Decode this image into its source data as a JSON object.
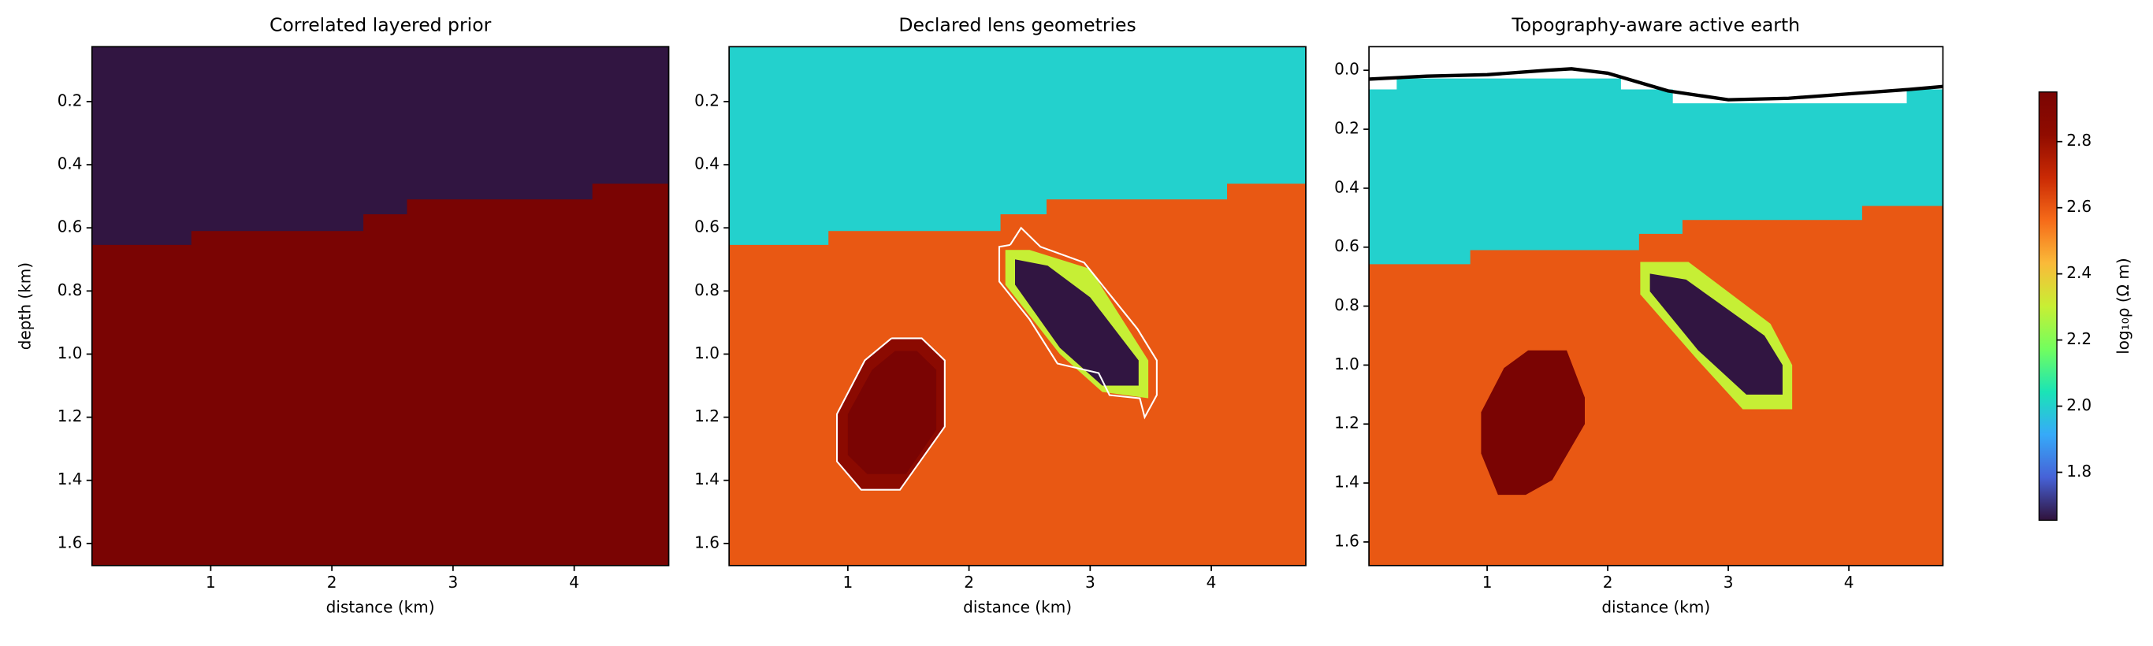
{
  "chart_data": [
    {
      "type": "heatmap",
      "title": "Correlated layered prior",
      "xlabel": "distance (km)",
      "ylabel": "depth (km)",
      "xlim": [
        0.02,
        4.78
      ],
      "ylim": [
        1.67,
        0.026
      ],
      "xticks": [
        1,
        2,
        3,
        4
      ],
      "yticks": [
        0.2,
        0.4,
        0.6,
        0.8,
        {
          "value": 1,
          "label": "1.0"
        },
        1.2,
        1.4,
        1.6
      ],
      "regions": [
        {
          "value": 1.66,
          "x": [
            0,
            4.8,
            4.8,
            0
          ],
          "y": [
            0,
            0,
            1.7,
            1.7
          ]
        },
        {
          "value": 2.95,
          "x": [
            0,
            0.84,
            0.84,
            2.26,
            2.26,
            2.62,
            2.62,
            4.15,
            4.15,
            4.8,
            4.8,
            0
          ],
          "y": [
            0.654,
            0.654,
            0.61,
            0.61,
            0.557,
            0.557,
            0.51,
            0.51,
            0.46,
            0.46,
            1.7,
            1.7
          ]
        }
      ]
    },
    {
      "type": "heatmap",
      "title": "Declared lens geometries",
      "xlabel": "distance (km)",
      "xlim": [
        0.02,
        4.78
      ],
      "ylim": [
        1.67,
        0.026
      ],
      "xticks": [
        1,
        2,
        3,
        4
      ],
      "yticks": [
        0.2,
        0.4,
        0.6,
        0.8,
        {
          "value": 1,
          "label": "1.0"
        },
        1.2,
        1.4,
        1.6
      ],
      "regions": [
        {
          "value": 2.0,
          "x": [
            0,
            4.8,
            4.8,
            0
          ],
          "y": [
            0,
            0,
            1.7,
            1.7
          ]
        },
        {
          "value": 2.6,
          "x": [
            0,
            0.84,
            0.84,
            2.26,
            2.26,
            2.64,
            2.64,
            4.13,
            4.13,
            4.8,
            4.8,
            0
          ],
          "y": [
            0.654,
            0.654,
            0.61,
            0.61,
            0.557,
            0.557,
            0.51,
            0.51,
            0.46,
            0.46,
            1.7,
            1.7
          ]
        },
        {
          "value": 2.85,
          "x": [
            1.36,
            1.61,
            1.8,
            1.8,
            1.43,
            1.11,
            0.91,
            0.91,
            1.14
          ],
          "y": [
            0.95,
            0.95,
            1.02,
            1.23,
            1.43,
            1.43,
            1.34,
            1.19,
            1.02
          ]
        },
        {
          "value": 2.95,
          "x": [
            1.39,
            1.57,
            1.73,
            1.73,
            1.48,
            1.16,
            1.0,
            1.0,
            1.2
          ],
          "y": [
            0.99,
            0.99,
            1.05,
            1.24,
            1.38,
            1.38,
            1.32,
            1.19,
            1.05
          ]
        },
        {
          "value": 2.3,
          "x": [
            2.3,
            2.5,
            3.0,
            3.48,
            3.48,
            3.1,
            2.75,
            2.3
          ],
          "y": [
            0.67,
            0.67,
            0.73,
            1.02,
            1.14,
            1.12,
            1.0,
            0.78
          ]
        },
        {
          "value": 1.66,
          "x": [
            2.38,
            2.65,
            3.0,
            3.4,
            3.4,
            3.1,
            2.75,
            2.38
          ],
          "y": [
            0.7,
            0.72,
            0.82,
            1.02,
            1.1,
            1.1,
            0.98,
            0.78
          ]
        }
      ],
      "outlines": [
        {
          "color": "#ffffff",
          "x": [
            1.36,
            1.61,
            1.8,
            1.8,
            1.43,
            1.11,
            0.91,
            0.91,
            1.14,
            1.36
          ],
          "y": [
            0.95,
            0.95,
            1.02,
            1.23,
            1.43,
            1.43,
            1.34,
            1.19,
            1.02,
            0.95
          ]
        },
        {
          "color": "#ffffff",
          "x": [
            2.34,
            2.43,
            2.59,
            2.95,
            3.39,
            3.55,
            3.55,
            3.45,
            3.41,
            3.16,
            3.07,
            2.73,
            2.5,
            2.25,
            2.25,
            2.34
          ],
          "y": [
            0.654,
            0.6,
            0.66,
            0.71,
            0.92,
            1.02,
            1.13,
            1.2,
            1.14,
            1.13,
            1.06,
            1.03,
            0.89,
            0.77,
            0.66,
            0.654
          ]
        }
      ]
    },
    {
      "type": "heatmap",
      "title": "Topography-aware active earth",
      "xlabel": "distance (km)",
      "xlim": [
        0.02,
        4.78
      ],
      "ylim": [
        1.68,
        -0.08
      ],
      "xticks": [
        1,
        2,
        3,
        4
      ],
      "yticks": [
        {
          "value": 0,
          "label": "0.0"
        },
        0.2,
        0.4,
        0.6,
        0.8,
        {
          "value": 1,
          "label": "1.0"
        },
        1.2,
        1.4,
        1.6
      ],
      "regions": [
        {
          "value": 2.0,
          "x": [
            0,
            0.25,
            0.25,
            2.11,
            2.11,
            2.54,
            2.54,
            4.48,
            4.48,
            4.8,
            4.8,
            0
          ],
          "y": [
            0.065,
            0.065,
            0.028,
            0.028,
            0.065,
            0.065,
            0.112,
            0.112,
            0.065,
            0.065,
            1.7,
            1.7
          ]
        },
        {
          "value": 2.6,
          "x": [
            0,
            0.86,
            0.86,
            2.26,
            2.26,
            2.62,
            2.62,
            4.11,
            4.11,
            4.8,
            4.8,
            0
          ],
          "y": [
            0.658,
            0.658,
            0.61,
            0.61,
            0.555,
            0.555,
            0.508,
            0.508,
            0.46,
            0.46,
            1.7,
            1.7
          ]
        },
        {
          "value": 2.95,
          "x": [
            1.34,
            1.66,
            1.81,
            1.81,
            1.54,
            1.32,
            1.09,
            0.95,
            0.95,
            1.14
          ],
          "y": [
            0.95,
            0.95,
            1.11,
            1.2,
            1.39,
            1.44,
            1.44,
            1.3,
            1.16,
            1.01
          ]
        },
        {
          "value": 2.3,
          "x": [
            2.27,
            2.67,
            3.35,
            3.53,
            3.53,
            3.12,
            2.74,
            2.27
          ],
          "y": [
            0.65,
            0.65,
            0.86,
            1.0,
            1.15,
            1.15,
            0.98,
            0.76
          ]
        },
        {
          "value": 1.66,
          "x": [
            2.35,
            2.65,
            3.3,
            3.45,
            3.45,
            3.15,
            2.75,
            2.35
          ],
          "y": [
            0.69,
            0.71,
            0.9,
            1.0,
            1.1,
            1.1,
            0.95,
            0.75
          ]
        }
      ],
      "lines": [
        {
          "color": "#000000",
          "x": [
            0.02,
            0.5,
            1.0,
            1.5,
            1.7,
            2.0,
            2.5,
            3.0,
            3.5,
            4.0,
            4.5,
            4.78
          ],
          "y": [
            0.03,
            0.02,
            0.015,
            0.0,
            -0.005,
            0.01,
            0.07,
            0.1,
            0.095,
            0.08,
            0.065,
            0.055
          ]
        }
      ]
    },
    {
      "type": "colorbar",
      "label": "log₁₀ρ (Ω m)",
      "clim": [
        1.655,
        2.95
      ],
      "ticks": [
        1.8,
        {
          "value": 2,
          "label": "2.0"
        },
        2.2,
        2.4,
        2.6,
        2.8
      ],
      "colors": [
        "#30123b",
        "#4662d7",
        "#36aaf9",
        "#1ae4b6",
        "#72fe5e",
        "#c8ef34",
        "#faba39",
        "#f66b19",
        "#ca2a04",
        "#900c00",
        "#7a0403"
      ]
    }
  ]
}
